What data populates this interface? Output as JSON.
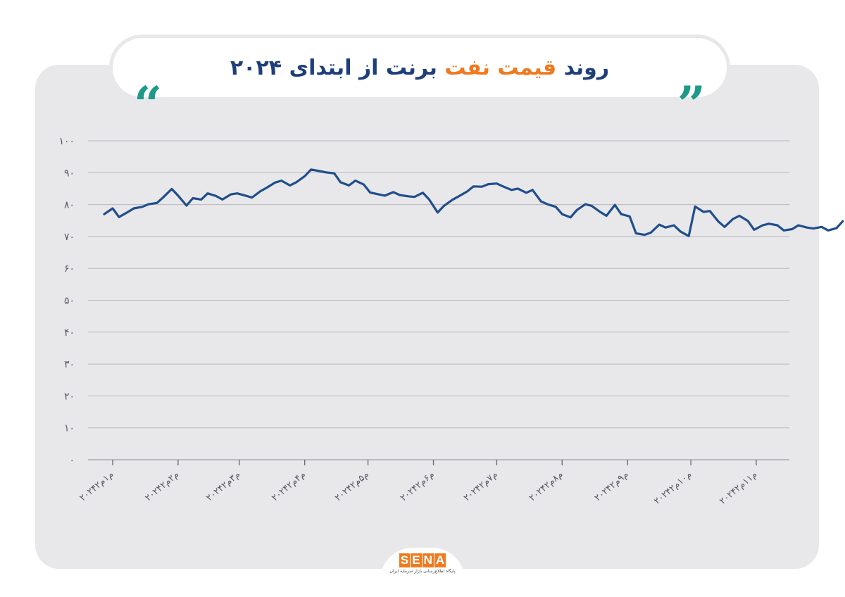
{
  "header": {
    "title_part1": "روند ",
    "title_accent": "قیمت نفت",
    "title_part2": " برنت از ابتدای ۲۰۲۴",
    "quote_left": "“",
    "quote_right": "”"
  },
  "logo": {
    "letters": [
      "S",
      "E",
      "N",
      "A"
    ],
    "tagline": "پایگاه اطلاع‌رسانی بازار سرمایه ایران"
  },
  "colors": {
    "title": "#1f3f79",
    "accent": "#ef7a1f",
    "quote": "#1d9a8a",
    "line": "#1f4e8c",
    "grid": "#b9b9bd",
    "card": "#e8e7ea"
  },
  "chart_data": {
    "type": "line",
    "title": "روند قیمت نفت برنت از ابتدای ۲۰۲۴",
    "xlabel": "",
    "ylabel": "",
    "ylim": [
      0,
      100
    ],
    "yticks": [
      0,
      10,
      20,
      30,
      40,
      50,
      60,
      70,
      80,
      90,
      100
    ],
    "ytick_labels": [
      "۰",
      "۱۰",
      "۲۰",
      "۳۰",
      "۴۰",
      "۵۰",
      "۶۰",
      "۷۰",
      "۸۰",
      "۹۰",
      "۱۰۰"
    ],
    "xticks": [
      {
        "date": "2024-01-02",
        "label": "۲۰۲۴م۱م۲"
      },
      {
        "date": "2024-02-02",
        "label": "۲۰۲۴م۲م۲"
      },
      {
        "date": "2024-03-02",
        "label": "۲۰۲۴م۳م۲"
      },
      {
        "date": "2024-04-02",
        "label": "۲۰۲۴م۴م۲"
      },
      {
        "date": "2024-05-02",
        "label": "۲۰۲۴م۵م۲"
      },
      {
        "date": "2024-06-02",
        "label": "۲۰۲۴م۶م۲"
      },
      {
        "date": "2024-07-02",
        "label": "۲۰۲۴م۷م۲"
      },
      {
        "date": "2024-08-02",
        "label": "۲۰۲۴م۸م۲"
      },
      {
        "date": "2024-09-02",
        "label": "۲۰۲۴م۹م۲"
      },
      {
        "date": "2024-10-02",
        "label": "۲۰۲۴م۱۰م۲"
      },
      {
        "date": "2024-11-02",
        "label": "۲۰۲۴م۱۱م۲"
      }
    ],
    "grid": true,
    "legend": "none",
    "series": [
      {
        "x": [
          "2023-12-29",
          "2024-01-02",
          "2024-01-05",
          "2024-01-09",
          "2024-01-12",
          "2024-01-16",
          "2024-01-19",
          "2024-01-23",
          "2024-01-26",
          "2024-01-30",
          "2024-02-02",
          "2024-02-06",
          "2024-02-09",
          "2024-02-13",
          "2024-02-16",
          "2024-02-20",
          "2024-02-23",
          "2024-02-27",
          "2024-03-01",
          "2024-03-05",
          "2024-03-08",
          "2024-03-12",
          "2024-03-15",
          "2024-03-19",
          "2024-03-22",
          "2024-03-26",
          "2024-03-29",
          "2024-04-02",
          "2024-04-05",
          "2024-04-09",
          "2024-04-12",
          "2024-04-16",
          "2024-04-19",
          "2024-04-23",
          "2024-04-26",
          "2024-04-30",
          "2024-05-03",
          "2024-05-07",
          "2024-05-10",
          "2024-05-14",
          "2024-05-17",
          "2024-05-21",
          "2024-05-24",
          "2024-05-28",
          "2024-05-31",
          "2024-06-04",
          "2024-06-07",
          "2024-06-11",
          "2024-06-14",
          "2024-06-18",
          "2024-06-21",
          "2024-06-25",
          "2024-06-28",
          "2024-07-02",
          "2024-07-05",
          "2024-07-09",
          "2024-07-12",
          "2024-07-16",
          "2024-07-19",
          "2024-07-23",
          "2024-07-26",
          "2024-07-30",
          "2024-08-02",
          "2024-08-06",
          "2024-08-09",
          "2024-08-13",
          "2024-08-16",
          "2024-08-20",
          "2024-08-23",
          "2024-08-27",
          "2024-08-30",
          "2024-09-03",
          "2024-09-06",
          "2024-09-10",
          "2024-09-13",
          "2024-09-17",
          "2024-09-20",
          "2024-09-24",
          "2024-09-27",
          "2024-10-01",
          "2024-10-04",
          "2024-10-08",
          "2024-10-11",
          "2024-10-15",
          "2024-10-18",
          "2024-10-22",
          "2024-10-25",
          "2024-10-29",
          "2024-11-01",
          "2024-11-05",
          "2024-11-08",
          "2024-11-12",
          "2024-11-15",
          "2024-11-19",
          "2024-11-22",
          "2024-11-26",
          "2024-11-29",
          "2024-12-03",
          "2024-12-06",
          "2024-12-10",
          "2024-12-13"
        ],
        "values": [
          77.0,
          78.8,
          76.1,
          77.6,
          78.8,
          79.3,
          80.1,
          80.5,
          82.3,
          84.9,
          82.8,
          79.7,
          82.0,
          81.6,
          83.5,
          82.7,
          81.6,
          83.2,
          83.5,
          82.8,
          82.2,
          84.2,
          85.3,
          86.9,
          87.5,
          86.0,
          87.0,
          88.9,
          91.0,
          90.5,
          90.1,
          89.8,
          87.0,
          86.0,
          87.5,
          86.3,
          83.8,
          83.2,
          82.8,
          83.9,
          83.0,
          82.6,
          82.4,
          83.7,
          81.6,
          77.5,
          79.6,
          81.5,
          82.6,
          84.1,
          85.7,
          85.6,
          86.4,
          86.6,
          85.7,
          84.6,
          85.0,
          83.7,
          84.6,
          81.0,
          80.1,
          79.3,
          77.0,
          76.0,
          78.3,
          80.1,
          79.6,
          77.7,
          76.5,
          79.9,
          77.0,
          76.3,
          71.0,
          70.5,
          71.2,
          73.7,
          72.8,
          73.5,
          71.6,
          70.1,
          79.4,
          77.7,
          78.0,
          74.7,
          73.0,
          75.5,
          76.5,
          74.9,
          72.1,
          73.5,
          74.0,
          73.5,
          71.9,
          72.3,
          73.5,
          72.8,
          72.5,
          73.0,
          71.9,
          72.6,
          74.8
        ]
      }
    ]
  }
}
